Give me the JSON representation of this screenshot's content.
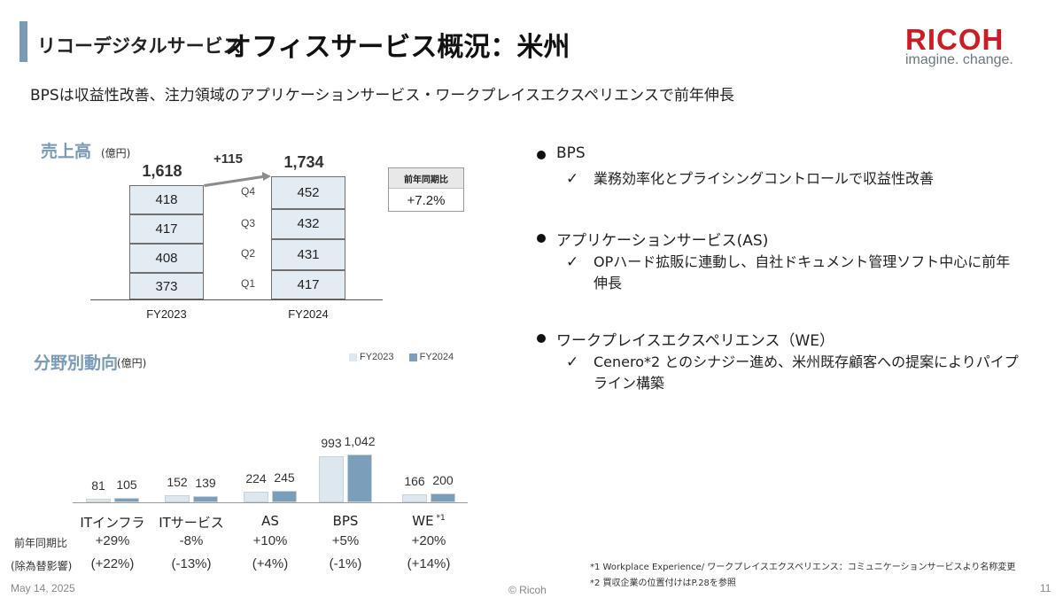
{
  "header": {
    "subtitle": "リコーデジタルサービス",
    "title": "オフィスサービス概況：米州",
    "logo_text": "RICOH",
    "tagline": "imagine. change.",
    "headline": "BPSは収益性改善、注力領域のアプリケーションサービス・ワークプレイスエクスペリエンスで前年伸長",
    "logo_color": "#cf1c24",
    "accent_color": "#7a9bb7"
  },
  "sales": {
    "title": "売上高",
    "unit": "(億円)",
    "increase_label": "+115",
    "yoy_header": "前年同期比",
    "yoy_value": "+7.2%"
  },
  "segments": {
    "title": "分野別動向",
    "unit": "(億円)",
    "row_label_yoy": "前年同期比",
    "row_label_adj": "(除為替影響)"
  },
  "bullets": [
    {
      "head": "BPS",
      "subs": [
        "業務効率化とプライシングコントロールで収益性改善"
      ]
    },
    {
      "head": "アプリケーションサービス(AS)",
      "subs": [
        "OPハード拡販に連動し、自社ドキュメント管理ソフト中心に前年伸長"
      ]
    },
    {
      "head": "ワークプレイスエクスペリエンス（WE）",
      "subs": [
        "Cenero*2 とのシナジー進め、米州既存顧客への提案によりパイプライン構築"
      ]
    }
  ],
  "check_glyph": "✓",
  "footnotes": [
    "*1 Workplace Experience/ ワークプレイスエクスペリエンス：コミュニケーションサービスより名称変更",
    "*2 買収企業の位置付けはP.28を参照"
  ],
  "footer": {
    "date": "May 14, 2025",
    "copyright": "© Ricoh",
    "page": "11"
  },
  "chart_data": [
    {
      "type": "bar",
      "stacked": true,
      "categories": [
        "FY2023",
        "FY2024"
      ],
      "totals": [
        "1,618",
        "1,734"
      ],
      "series": [
        {
          "name": "Q1",
          "values": [
            373,
            417
          ]
        },
        {
          "name": "Q2",
          "values": [
            408,
            431
          ]
        },
        {
          "name": "Q3",
          "values": [
            417,
            432
          ]
        },
        {
          "name": "Q4",
          "values": [
            418,
            452
          ]
        }
      ],
      "bar_color": "#e4ecf3"
    },
    {
      "type": "bar",
      "categories": [
        "ITインフラ",
        "ITサービス",
        "AS",
        "BPS",
        "WE"
      ],
      "category_notes": [
        "",
        "",
        "",
        "",
        "*1"
      ],
      "series": [
        {
          "name": "FY2023",
          "values": [
            81,
            152,
            224,
            993,
            166
          ],
          "labels": [
            "81",
            "152",
            "224",
            "993",
            "166"
          ],
          "color": "#dce7f0"
        },
        {
          "name": "FY2024",
          "values": [
            105,
            139,
            245,
            1042,
            200
          ],
          "labels": [
            "105",
            "139",
            "245",
            "1,042",
            "200"
          ],
          "color": "#7b9fba"
        }
      ],
      "yoy": [
        "+29%",
        "-8%",
        "+10%",
        "+5%",
        "+20%"
      ],
      "yoy_ex_fx": [
        "(+22%)",
        "(-13%)",
        "(+4%)",
        "(-1%)",
        "(+14%)"
      ],
      "legend_position": "top-right"
    }
  ]
}
